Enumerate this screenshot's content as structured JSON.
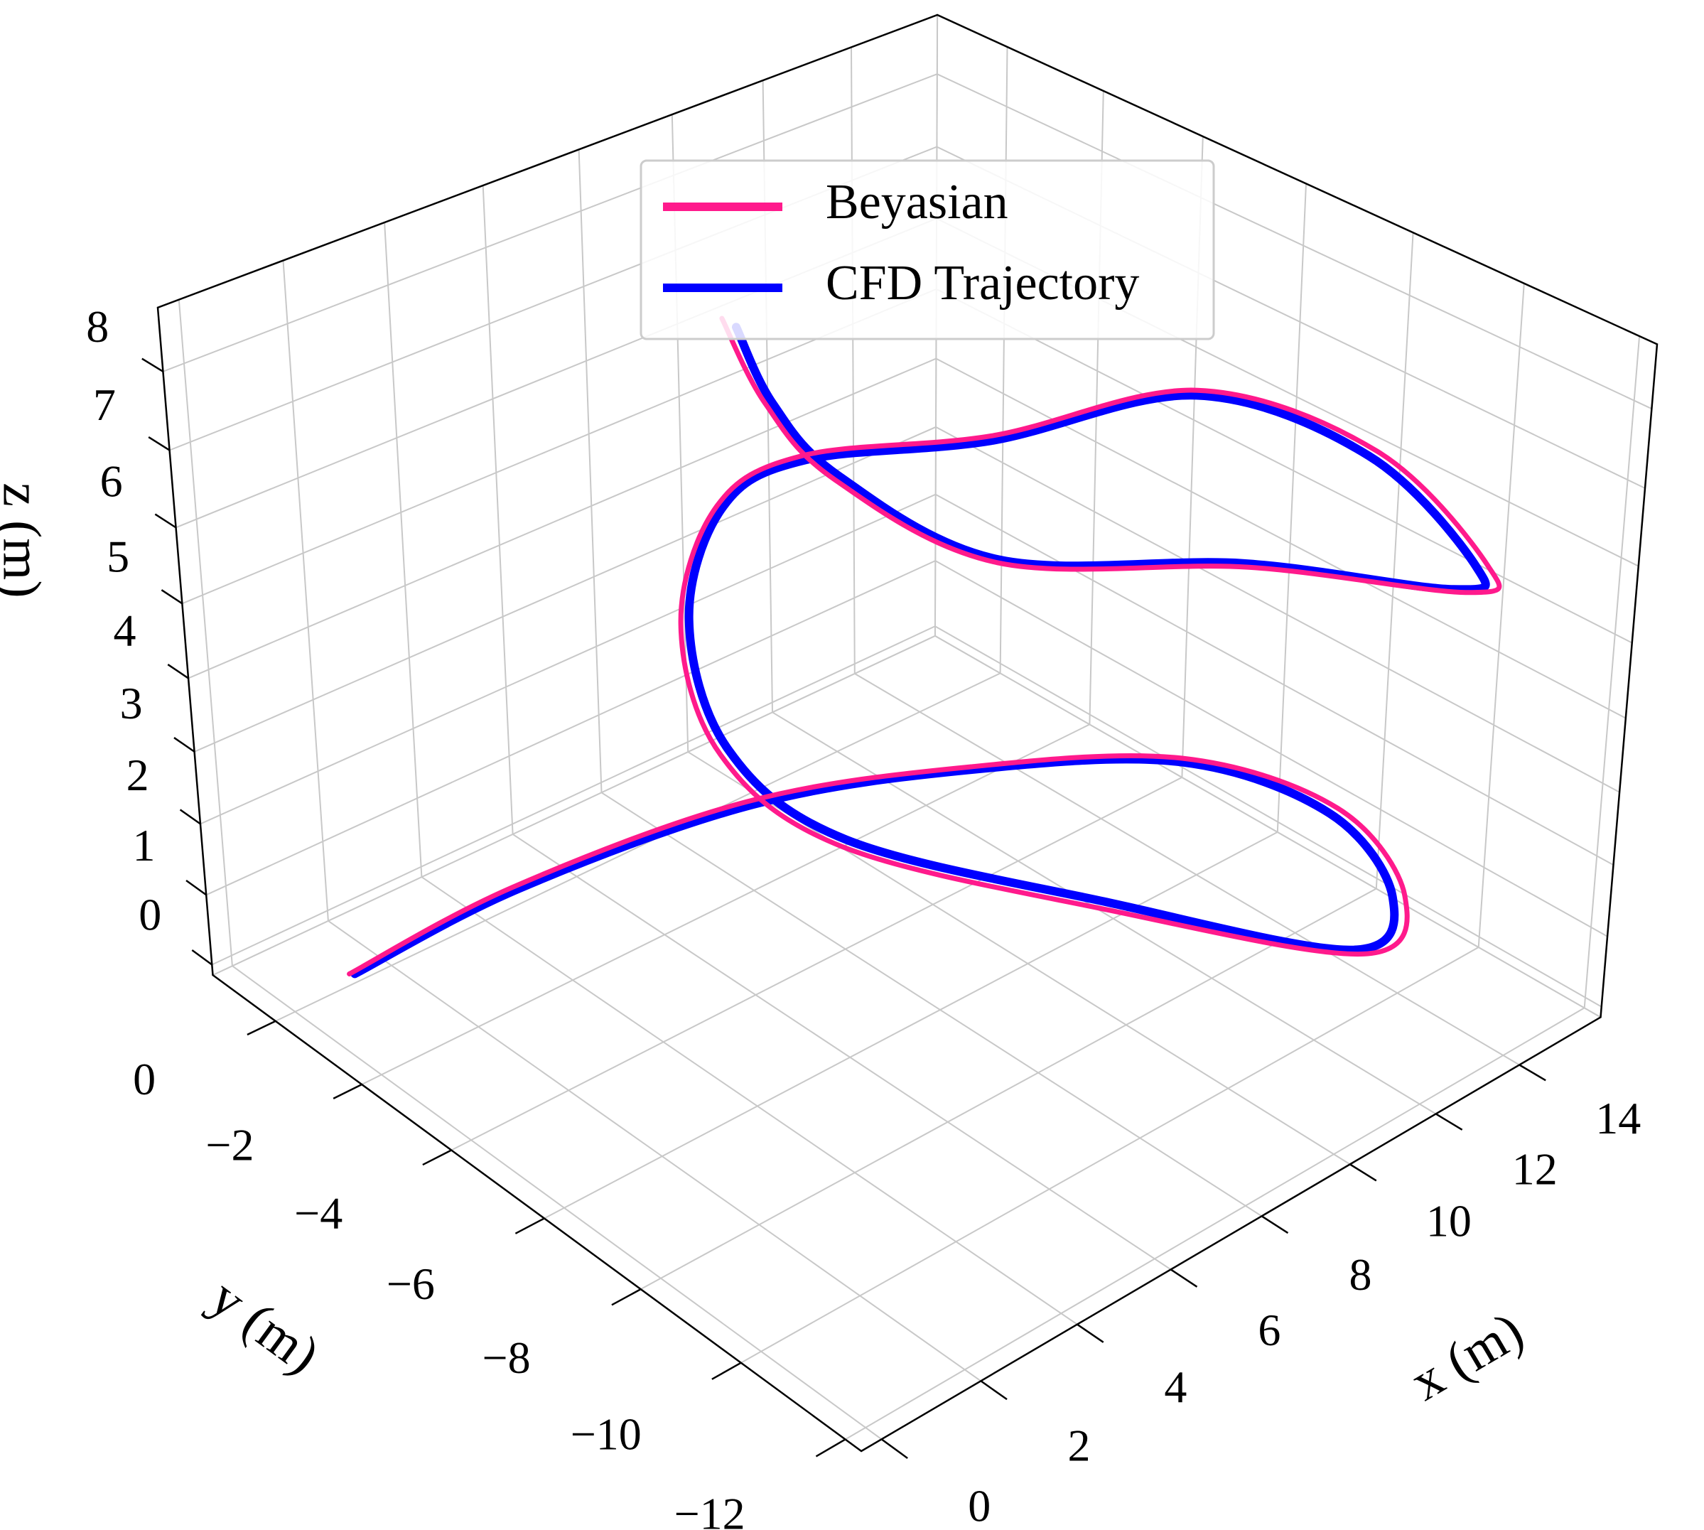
{
  "chart_data": {
    "type": "line3d",
    "xlabel": "x (m)",
    "ylabel": "y (m)",
    "zlabel": "z (m)",
    "xlim": [
      -0.4,
      16.0
    ],
    "ylim": [
      -12.3,
      1.5
    ],
    "zlim": [
      -0.15,
      8.8
    ],
    "xticks": [
      0,
      2,
      4,
      6,
      8,
      10,
      12,
      14
    ],
    "yticks": [
      {
        "value": -12,
        "label": "−12"
      },
      {
        "value": -10,
        "label": "−10"
      },
      {
        "value": -8,
        "label": "−8"
      },
      {
        "value": -6,
        "label": "−6"
      },
      {
        "value": -4,
        "label": "−4"
      },
      {
        "value": -2,
        "label": "−2"
      },
      0
    ],
    "zticks": [
      0,
      1,
      2,
      3,
      4,
      5,
      6,
      7,
      8
    ],
    "grid": true,
    "legend": "upper center",
    "series": [
      {
        "name": "Beyasian",
        "color": "#ff1a8c",
        "x": [
          1.15,
          4.25,
          8.2,
          11.2,
          13.45,
          13.8,
          12.35,
          10.45,
          7.9,
          5.55,
          5.3,
          6.7,
          8.8,
          10.3,
          12.45,
          15.4,
          15.55,
          13.7,
          12.6,
          10.1,
          6.85,
          6.05,
          6.1,
          6.4
        ],
        "y": [
          0.02,
          -0.4,
          -1.68,
          -3.7,
          -6.1,
          -8.85,
          -11.25,
          -12.0,
          -9.4,
          -6.3,
          -4.05,
          -1.82,
          -0.52,
          -0.95,
          -2.95,
          -4.55,
          -7.9,
          -11.35,
          -11.85,
          -9.9,
          -8.1,
          -5.72,
          -4.3,
          -3.15
        ],
        "z": [
          0,
          0.42,
          0.95,
          1.35,
          1.75,
          2.05,
          2.3,
          2.45,
          2.75,
          3.05,
          3.45,
          3.95,
          4.5,
          4.95,
          5.35,
          5.75,
          6.05,
          6.3,
          6.45,
          6.75,
          7.05,
          7.45,
          7.9,
          8.5
        ]
      },
      {
        "name": "CFD Trajectory",
        "color": "#0000ff",
        "x": [
          1.22,
          4.34,
          8.3,
          11.29,
          13.44,
          13.67,
          12.19,
          10.32,
          7.97,
          5.66,
          5.42,
          6.81,
          8.87,
          10.31,
          12.41,
          15.35,
          15.43,
          13.54,
          12.41,
          10.04,
          6.84,
          6.09,
          6.18,
          6.55
        ],
        "y": [
          -0.03,
          -0.46,
          -1.73,
          -3.73,
          -6.11,
          -8.8,
          -11.15,
          -11.89,
          -9.33,
          -6.28,
          -4.1,
          -1.89,
          -0.59,
          -0.99,
          -2.97,
          -4.57,
          -7.85,
          -11.27,
          -11.73,
          -9.86,
          -8.12,
          -5.77,
          -4.38,
          -3.29
        ],
        "z": [
          0,
          0.4,
          0.9,
          1.3,
          1.7,
          2.0,
          2.3,
          2.5,
          2.8,
          3.1,
          3.5,
          4.0,
          4.5,
          4.9,
          5.3,
          5.7,
          6.0,
          6.3,
          6.5,
          6.8,
          7.1,
          7.5,
          7.9,
          8.4
        ]
      }
    ]
  }
}
